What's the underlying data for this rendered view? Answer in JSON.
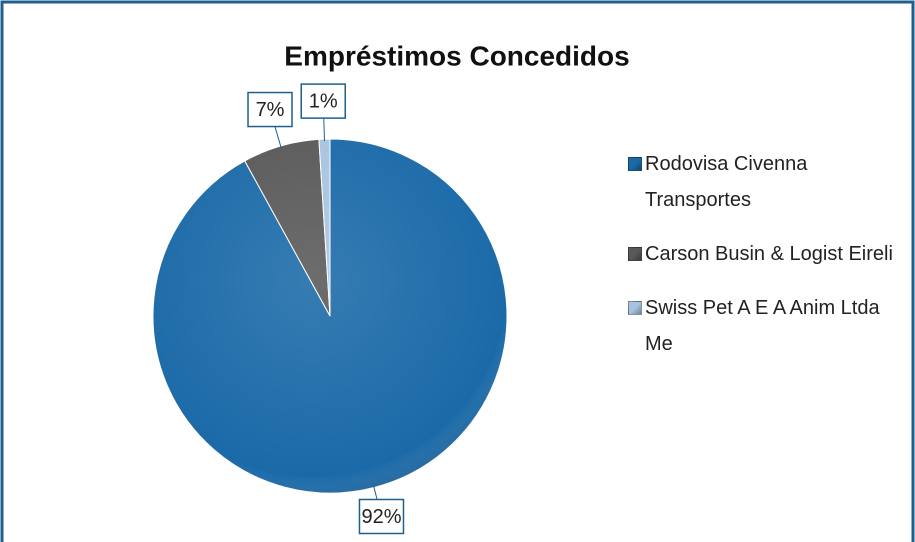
{
  "chart_data": {
    "type": "pie",
    "title": "Empréstimos Concedidos",
    "categories": [
      "Rodovisa Civenna Transportes",
      "Carson Busin & Logist Eireli",
      "Swiss Pet A E A Anim Ltda Me"
    ],
    "values": [
      92,
      7,
      1
    ],
    "value_labels": [
      "92%",
      "7%",
      "1%"
    ],
    "colors": [
      "#1b6aa8",
      "#595959",
      "#a8c3df"
    ],
    "legend": "right"
  }
}
